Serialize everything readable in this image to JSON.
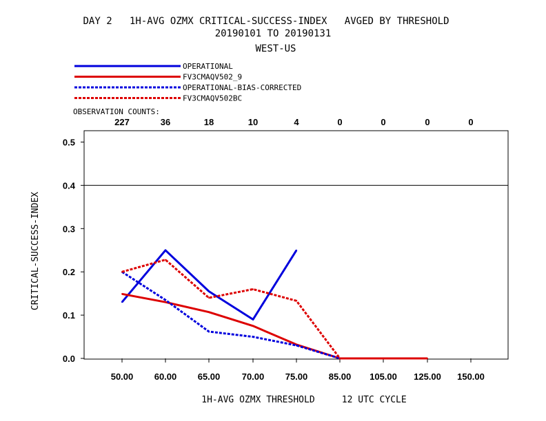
{
  "chart_data": {
    "type": "line",
    "title": "DAY 2   1H-AVG OZMX CRITICAL-SUCCESS-INDEX   AVGED BY THRESHOLD",
    "subtitle": "20190101 TO 20190131",
    "region": "WEST-US",
    "xlabel": "1H-AVG OZMX THRESHOLD     12 UTC CYCLE",
    "ylabel": "CRITICAL-SUCCESS-INDEX",
    "categories": [
      "50.00",
      "60.00",
      "65.00",
      "70.00",
      "75.00",
      "85.00",
      "105.00",
      "125.00",
      "150.00"
    ],
    "ylim": [
      0,
      0.52
    ],
    "yticks": [
      "0.0",
      "0.1",
      "0.2",
      "0.3",
      "0.4",
      "0.5"
    ],
    "reference_line": 0.4,
    "observation_counts_label": "OBSERVATION COUNTS:",
    "observation_counts": [
      "227",
      "36",
      "18",
      "10",
      "4",
      "0",
      "0",
      "0",
      "0"
    ],
    "legend_placement": "top-left",
    "series": [
      {
        "name": "OPERATIONAL",
        "color": "#0000dd",
        "dashed": false,
        "values": [
          0.13,
          0.25,
          0.155,
          0.09,
          0.25,
          null,
          null,
          null,
          null
        ]
      },
      {
        "name": "FV3CMAQV502_9",
        "color": "#dd0000",
        "dashed": false,
        "values": [
          0.149,
          0.13,
          0.107,
          0.075,
          0.032,
          0.0,
          0.0,
          0.0,
          null
        ]
      },
      {
        "name": "OPERATIONAL-BIAS-CORRECTED",
        "color": "#0000dd",
        "dashed": true,
        "values": [
          0.2,
          0.135,
          0.062,
          0.05,
          0.03,
          0.0,
          null,
          null,
          null
        ]
      },
      {
        "name": "FV3CMAQV502BC",
        "color": "#dd0000",
        "dashed": true,
        "values": [
          0.2,
          0.228,
          0.14,
          0.16,
          0.133,
          0.0,
          null,
          null,
          null
        ]
      }
    ]
  }
}
